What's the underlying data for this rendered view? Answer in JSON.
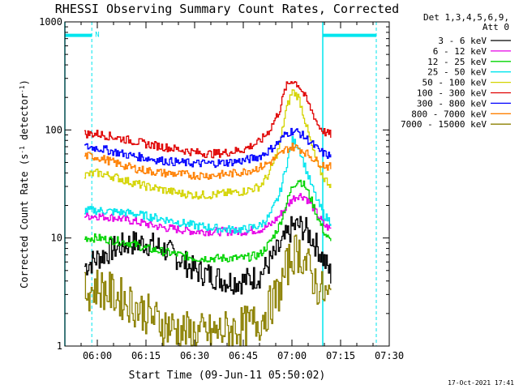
{
  "chart_data": {
    "type": "line",
    "title": "RHESSI Observing Summary Count Rates, Corrected",
    "xlabel": "Start Time (09-Jun-11 05:50:02)",
    "ylabel_parts": [
      "Corrected Count Rate (s",
      "-1",
      " detector",
      "-1",
      ")"
    ],
    "x_unit": "minutes",
    "xlim": [
      0,
      100
    ],
    "ylim": [
      1,
      1000
    ],
    "yscale": "log",
    "x_ticks": [
      {
        "x": 10,
        "label": "06:00"
      },
      {
        "x": 25,
        "label": "06:15"
      },
      {
        "x": 40,
        "label": "06:30"
      },
      {
        "x": 55,
        "label": "06:45"
      },
      {
        "x": 70,
        "label": "07:00"
      },
      {
        "x": 85,
        "label": "07:15"
      },
      {
        "x": 100,
        "label": "07:30"
      }
    ],
    "y_ticks": [
      {
        "y": 1,
        "label": "1"
      },
      {
        "y": 10,
        "label": "10"
      },
      {
        "y": 100,
        "label": "100"
      },
      {
        "y": 1000,
        "label": "1000"
      }
    ],
    "legend_header": [
      "Det 1,3,4,5,6,9,",
      "Att 0"
    ],
    "legend_position": "right",
    "night_bars": [
      {
        "x0": 0,
        "x1": 8.3,
        "y": 750,
        "label": "N"
      },
      {
        "x0": 79.5,
        "x1": 96,
        "y": 750,
        "label": ""
      }
    ],
    "solid_markers": [
      0,
      79.5
    ],
    "dashed_markers": [
      8.3,
      96
    ],
    "series": [
      {
        "name": "3 - 6 keV",
        "color": "#000000",
        "x": [
          6,
          10,
          15,
          20,
          25,
          30,
          35,
          40,
          45,
          50,
          55,
          60,
          63,
          66,
          68,
          70,
          72,
          74,
          76,
          78,
          80,
          82
        ],
        "values": [
          5.5,
          6.5,
          8,
          9,
          9,
          8,
          6.5,
          5,
          4.5,
          4,
          4,
          4.5,
          6,
          8,
          10,
          12.5,
          13,
          12,
          10,
          8,
          6,
          4.5
        ]
      },
      {
        "name": "6 - 12 keV",
        "color": "#e600e6",
        "x": [
          6,
          10,
          15,
          20,
          25,
          30,
          35,
          40,
          45,
          50,
          55,
          60,
          63,
          66,
          68,
          70,
          72,
          74,
          76,
          78,
          80,
          82
        ],
        "values": [
          16,
          16,
          15.5,
          14.5,
          13.5,
          12.5,
          12,
          11.5,
          11.5,
          11.5,
          11.5,
          12,
          13,
          16,
          19,
          23,
          25,
          24,
          20,
          16,
          13,
          12
        ]
      },
      {
        "name": "12 - 25 keV",
        "color": "#00d400",
        "x": [
          6,
          10,
          15,
          20,
          25,
          30,
          35,
          40,
          45,
          50,
          55,
          60,
          63,
          66,
          68,
          70,
          72,
          74,
          76,
          78,
          80,
          82
        ],
        "values": [
          10,
          10,
          9.5,
          9,
          8,
          7.5,
          7,
          6.5,
          6.5,
          6.5,
          6.5,
          7,
          9,
          13,
          20,
          30,
          35,
          30,
          22,
          15,
          11,
          9
        ]
      },
      {
        "name": "25 - 50 keV",
        "color": "#00e5ee",
        "x": [
          6,
          10,
          15,
          20,
          25,
          30,
          35,
          40,
          45,
          50,
          55,
          60,
          63,
          66,
          68,
          70,
          72,
          74,
          76,
          78,
          80,
          82
        ],
        "values": [
          18,
          18,
          17.5,
          17,
          16,
          15,
          14,
          13,
          12.5,
          12,
          12,
          13,
          16,
          25,
          45,
          80,
          70,
          45,
          30,
          21,
          16,
          14
        ]
      },
      {
        "name": "50 - 100 keV",
        "color": "#d4d400",
        "x": [
          6,
          10,
          15,
          20,
          25,
          30,
          35,
          40,
          45,
          50,
          55,
          60,
          63,
          66,
          68,
          70,
          72,
          74,
          76,
          78,
          80,
          82
        ],
        "values": [
          38,
          40,
          37,
          33,
          30,
          28,
          26,
          25,
          25,
          26,
          27,
          30,
          40,
          70,
          150,
          230,
          200,
          120,
          70,
          45,
          35,
          31
        ]
      },
      {
        "name": "100 - 300 keV",
        "color": "#e00000",
        "x": [
          6,
          10,
          15,
          20,
          25,
          30,
          35,
          40,
          45,
          50,
          55,
          60,
          63,
          66,
          68,
          70,
          72,
          74,
          76,
          78,
          80,
          82
        ],
        "values": [
          92,
          92,
          86,
          80,
          74,
          70,
          66,
          62,
          60,
          62,
          66,
          78,
          100,
          150,
          250,
          290,
          260,
          200,
          150,
          110,
          95,
          90
        ]
      },
      {
        "name": "300 - 800 keV",
        "color": "#0000ff",
        "x": [
          6,
          10,
          15,
          20,
          25,
          30,
          35,
          40,
          45,
          50,
          55,
          60,
          63,
          66,
          68,
          70,
          72,
          74,
          76,
          78,
          80,
          82
        ],
        "values": [
          70,
          68,
          63,
          58,
          55,
          52,
          50,
          49,
          49,
          50,
          52,
          57,
          65,
          78,
          92,
          98,
          95,
          85,
          75,
          65,
          60,
          57
        ]
      },
      {
        "name": "800 - 7000 keV",
        "color": "#ff8000",
        "x": [
          6,
          10,
          15,
          20,
          25,
          30,
          35,
          40,
          45,
          50,
          55,
          60,
          63,
          66,
          68,
          70,
          72,
          74,
          76,
          78,
          80,
          82
        ],
        "values": [
          58,
          56,
          50,
          45,
          42,
          40,
          39,
          38,
          38,
          39,
          41,
          45,
          50,
          58,
          66,
          70,
          68,
          62,
          56,
          50,
          47,
          45
        ]
      },
      {
        "name": "7000 - 15000 keV",
        "color": "#8b8000",
        "x": [
          6,
          10,
          15,
          20,
          25,
          30,
          35,
          40,
          45,
          50,
          55,
          60,
          63,
          66,
          68,
          70,
          72,
          74,
          76,
          78,
          80,
          82
        ],
        "values": [
          3.2,
          3.5,
          3,
          2.5,
          2,
          1.6,
          1.4,
          1.3,
          1.3,
          1.4,
          1.5,
          1.7,
          2.3,
          3.2,
          5,
          7,
          7.5,
          6,
          4.5,
          3.5,
          3,
          2.7
        ]
      }
    ]
  },
  "footer_date": "17-Oct-2021 17:41"
}
